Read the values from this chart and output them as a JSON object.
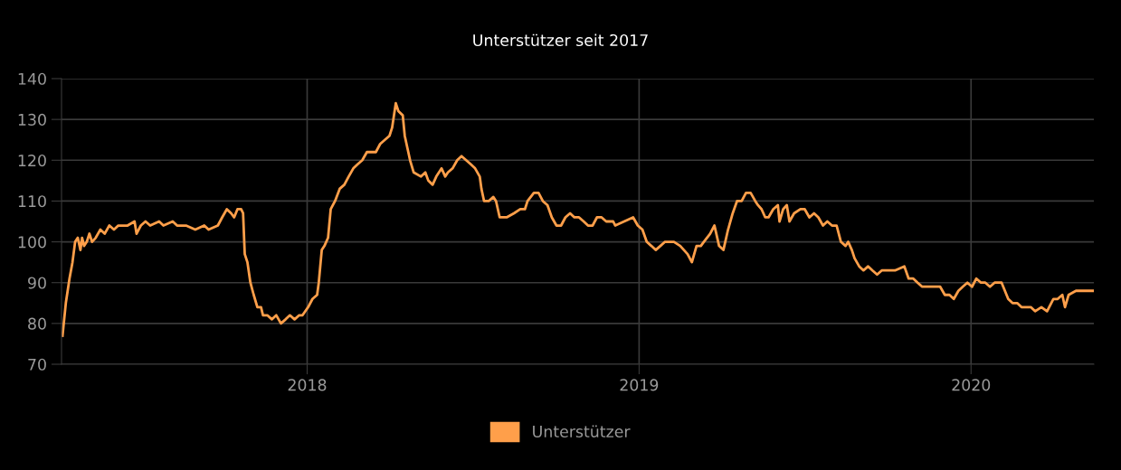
{
  "chart_data": {
    "type": "line",
    "title": "Unterstützer seit 2017",
    "x": [
      2017.263,
      2017.273,
      2017.284,
      2017.293,
      2017.301,
      2017.309,
      2017.317,
      2017.322,
      2017.328,
      2017.336,
      2017.344,
      2017.352,
      2017.363,
      2017.377,
      2017.39,
      2017.404,
      2017.418,
      2017.431,
      2017.459,
      2017.48,
      2017.486,
      2017.499,
      2017.513,
      2017.527,
      2017.554,
      2017.567,
      2017.595,
      2017.608,
      2017.635,
      2017.663,
      2017.69,
      2017.703,
      2017.731,
      2017.744,
      2017.758,
      2017.771,
      2017.78,
      2017.79,
      2017.801,
      2017.807,
      2017.812,
      2017.82,
      2017.829,
      2017.839,
      2017.85,
      2017.861,
      2017.867,
      2017.88,
      2017.894,
      2017.907,
      2017.921,
      2017.935,
      2017.948,
      2017.962,
      2017.976,
      2017.986,
      2018.003,
      2018.016,
      2018.03,
      2018.035,
      2018.044,
      2018.052,
      2018.063,
      2018.071,
      2018.084,
      2018.098,
      2018.112,
      2018.125,
      2018.139,
      2018.152,
      2018.166,
      2018.18,
      2018.207,
      2018.22,
      2018.234,
      2018.248,
      2018.256,
      2018.267,
      2018.275,
      2018.288,
      2018.294,
      2018.302,
      2018.31,
      2018.321,
      2018.343,
      2018.356,
      2018.365,
      2018.378,
      2018.389,
      2018.405,
      2018.416,
      2018.424,
      2018.438,
      2018.452,
      2018.465,
      2018.479,
      2018.493,
      2018.506,
      2018.52,
      2018.525,
      2018.533,
      2018.547,
      2018.561,
      2018.569,
      2018.58,
      2018.601,
      2018.623,
      2018.642,
      2018.656,
      2018.664,
      2018.683,
      2018.697,
      2018.71,
      2018.724,
      2018.737,
      2018.751,
      2018.765,
      2018.778,
      2018.792,
      2018.805,
      2018.819,
      2018.833,
      2018.846,
      2018.86,
      2018.873,
      2018.887,
      2018.901,
      2018.922,
      2018.928,
      2018.955,
      2018.982,
      2018.996,
      2019.01,
      2019.023,
      2019.037,
      2019.05,
      2019.064,
      2019.078,
      2019.105,
      2019.124,
      2019.146,
      2019.159,
      2019.173,
      2019.186,
      2019.195,
      2019.214,
      2019.227,
      2019.241,
      2019.254,
      2019.268,
      2019.282,
      2019.295,
      2019.309,
      2019.322,
      2019.336,
      2019.35,
      2019.358,
      2019.369,
      2019.38,
      2019.39,
      2019.404,
      2019.418,
      2019.423,
      2019.434,
      2019.445,
      2019.453,
      2019.467,
      2019.486,
      2019.499,
      2019.513,
      2019.527,
      2019.54,
      2019.554,
      2019.567,
      2019.581,
      2019.595,
      2019.608,
      2019.622,
      2019.63,
      2019.641,
      2019.649,
      2019.663,
      2019.676,
      2019.69,
      2019.703,
      2019.717,
      2019.731,
      2019.758,
      2019.771,
      2019.799,
      2019.812,
      2019.826,
      2019.839,
      2019.853,
      2019.88,
      2019.907,
      2019.921,
      2019.935,
      2019.948,
      2019.962,
      2019.975,
      2019.989,
      2020.003,
      2020.016,
      2020.03,
      2020.043,
      2020.057,
      2020.071,
      2020.092,
      2020.112,
      2020.125,
      2020.139,
      2020.152,
      2020.18,
      2020.193,
      2020.212,
      2020.229,
      2020.248,
      2020.261,
      2020.275,
      2020.283,
      2020.294,
      2020.316,
      2020.367
    ],
    "series": [
      {
        "name": "Unterstützer",
        "color": "#ff9f4a",
        "values": [
          77,
          85,
          91,
          95,
          100,
          101,
          98,
          101,
          99,
          100,
          102,
          100,
          101,
          103,
          102,
          104,
          103,
          104,
          104,
          105,
          102,
          104,
          105,
          104,
          105,
          104,
          105,
          104,
          104,
          103,
          104,
          103,
          104,
          106,
          108,
          107,
          106,
          108,
          108,
          107,
          97,
          95,
          90,
          87,
          84,
          84,
          82,
          82,
          81,
          82,
          80,
          81,
          82,
          81,
          82,
          82,
          84,
          86,
          87,
          90,
          98,
          99,
          101,
          108,
          110,
          113,
          114,
          116,
          118,
          119,
          120,
          122,
          122,
          124,
          125,
          126,
          128,
          134,
          132,
          131,
          126,
          123,
          120,
          117,
          116,
          117,
          115,
          114,
          116,
          118,
          116,
          117,
          118,
          120,
          121,
          120,
          119,
          118,
          116,
          113,
          110,
          110,
          111,
          110,
          106,
          106,
          107,
          108,
          108,
          110,
          112,
          112,
          110,
          109,
          106,
          104,
          104,
          106,
          107,
          106,
          106,
          105,
          104,
          104,
          106,
          106,
          105,
          105,
          104,
          105,
          106,
          104,
          103,
          100,
          99,
          98,
          99,
          100,
          100,
          99,
          97,
          95,
          99,
          99,
          100,
          102,
          104,
          99,
          98,
          103,
          107,
          110,
          110,
          112,
          112,
          110,
          109,
          108,
          106,
          106,
          108,
          109,
          105,
          108,
          109,
          105,
          107,
          108,
          108,
          106,
          107,
          106,
          104,
          105,
          104,
          104,
          100,
          99,
          100,
          98,
          96,
          94,
          93,
          94,
          93,
          92,
          93,
          93,
          93,
          94,
          91,
          91,
          90,
          89,
          89,
          89,
          87,
          87,
          86,
          88,
          89,
          90,
          89,
          91,
          90,
          90,
          89,
          90,
          90,
          86,
          85,
          85,
          84,
          84,
          83,
          84,
          83,
          86,
          86,
          87,
          84,
          87,
          88,
          88
        ]
      }
    ],
    "xlim": [
      2017.26,
      2020.37
    ],
    "xticks": [
      {
        "value": 2018,
        "label": "2018"
      },
      {
        "value": 2019,
        "label": "2019"
      },
      {
        "value": 2020,
        "label": "2020"
      }
    ],
    "ylim": [
      70,
      140
    ],
    "yticks": [
      70,
      80,
      90,
      100,
      110,
      120,
      130,
      140
    ],
    "grid": true,
    "legend": "bottom",
    "marker": "none",
    "line_style": "solid"
  }
}
